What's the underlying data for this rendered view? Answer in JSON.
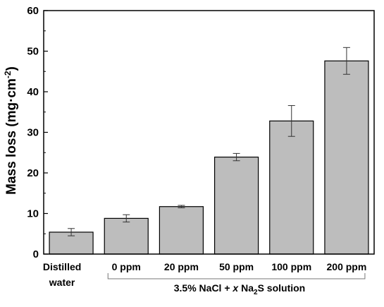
{
  "chart_data": {
    "type": "bar",
    "categories": [
      [
        "Distilled",
        "water"
      ],
      [
        "0 ppm"
      ],
      [
        "20 ppm"
      ],
      [
        "50 ppm"
      ],
      [
        "100 ppm"
      ],
      [
        "200 ppm"
      ]
    ],
    "values": [
      5.4,
      8.8,
      11.7,
      23.9,
      32.8,
      47.6
    ],
    "errors": [
      0.9,
      0.9,
      0.3,
      0.9,
      3.8,
      3.3
    ],
    "ylabel": "Mass loss (mg·cm⁻²)",
    "ylim": [
      0,
      60
    ],
    "yticks": [
      0,
      10,
      20,
      30,
      40,
      50,
      60
    ],
    "group_label": "3.5% NaCl + x Na₂S solution",
    "group_range": [
      1,
      5
    ],
    "bar_color": "#bdbdbd",
    "grid": false,
    "legend": "none"
  }
}
